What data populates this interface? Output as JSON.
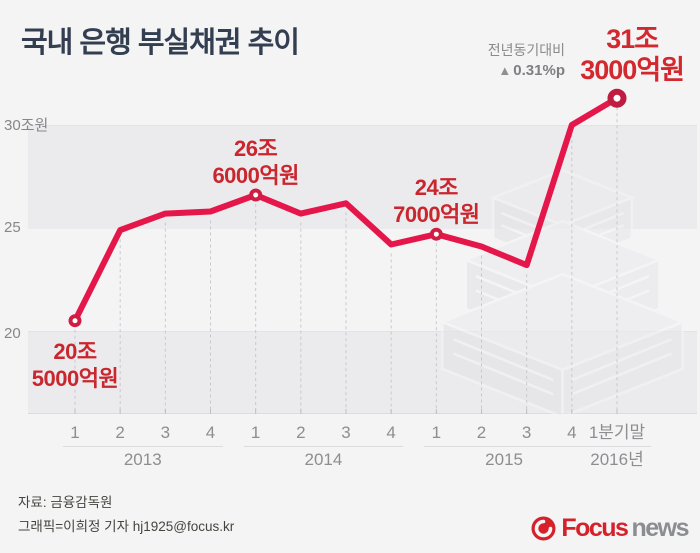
{
  "title": "국내 은행 부실채권 추이",
  "annotation": {
    "compare_label": "전년동기대비",
    "triangle": "▲",
    "change_value": "0.31%p"
  },
  "highlight": {
    "line1": "31조",
    "line2": "3000억원"
  },
  "axis": {
    "y_labels": [
      "30조원",
      "25",
      "20"
    ]
  },
  "chart_data": {
    "type": "line",
    "title": "국내 은행 부실채권 추이",
    "unit": "조원",
    "x": [
      "2013 Q1",
      "2013 Q2",
      "2013 Q3",
      "2013 Q4",
      "2014 Q1",
      "2014 Q2",
      "2014 Q3",
      "2014 Q4",
      "2015 Q1",
      "2015 Q2",
      "2015 Q3",
      "2015 Q4",
      "2016 1분기말"
    ],
    "values": [
      20.5,
      24.9,
      25.7,
      25.8,
      26.6,
      25.7,
      26.2,
      24.2,
      24.7,
      24.1,
      23.2,
      30.0,
      31.3
    ],
    "ylim": [
      16,
      32.5
    ],
    "gridlines": [
      20,
      25,
      30
    ],
    "grid_band_ranges": [
      [
        25,
        30
      ],
      [
        15,
        20
      ]
    ],
    "legend": "none",
    "marker_indices": [
      0,
      4,
      8,
      12
    ],
    "point_labels": [
      {
        "index": 0,
        "lines": [
          "20조",
          "5000억원"
        ],
        "placement": "below"
      },
      {
        "index": 4,
        "lines": [
          "26조",
          "6000억원"
        ],
        "placement": "above"
      },
      {
        "index": 8,
        "lines": [
          "24조",
          "7000억원"
        ],
        "placement": "above"
      }
    ],
    "x_groups": [
      {
        "year": "2013",
        "quarters": [
          "1",
          "2",
          "3",
          "4"
        ]
      },
      {
        "year": "2014",
        "quarters": [
          "1",
          "2",
          "3",
          "4"
        ]
      },
      {
        "year": "2015",
        "quarters": [
          "1",
          "2",
          "3",
          "4"
        ]
      },
      {
        "year": "2016년",
        "quarters": [
          "1분기말"
        ]
      }
    ]
  },
  "footer": {
    "source": "자료: 금융감독원",
    "credit": "그래픽=이희정 기자 hj1925@focus.kr"
  },
  "logo": {
    "brand": "Focus",
    "suffix": "news"
  },
  "colors": {
    "background": "#f4f4f5",
    "band_gray": "#ebebee",
    "line": "#e5164a",
    "marker_ring": "#cf1d43",
    "marker_ring_big": "#c01b40",
    "label_red": "#c9262e",
    "highlight_red": "#d2282e",
    "title_navy": "#333e50",
    "axis_gray": "#8b8b8e",
    "logo_red": "#d6212b",
    "logo_gray": "#8b8d90"
  }
}
